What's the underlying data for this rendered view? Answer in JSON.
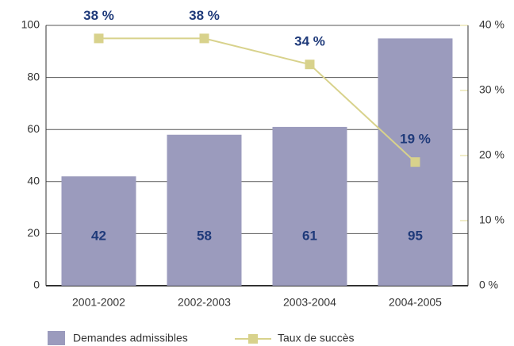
{
  "chart_data": {
    "type": "bar_line",
    "categories": [
      "2001-2002",
      "2002-2003",
      "2003-2004",
      "2004-2005"
    ],
    "series": [
      {
        "name": "Demandes admissibles",
        "color": "#9b9bbd",
        "values": [
          42,
          58,
          61,
          95
        ],
        "type": "bar"
      },
      {
        "name": "Taux de succès",
        "color": "#d8d28c",
        "values": [
          38,
          38,
          34,
          19
        ],
        "value_labels": [
          "38 %",
          "38 %",
          "34 %",
          "19 %"
        ],
        "type": "line",
        "axis": "y2"
      }
    ],
    "ylim": [
      0,
      100
    ],
    "yticks": [
      0,
      20,
      40,
      60,
      80,
      100
    ],
    "y2lim": [
      0,
      40
    ],
    "y2ticks": [
      {
        "value": 0,
        "label": "0 %"
      },
      {
        "value": 10,
        "label": "10 %"
      },
      {
        "value": 20,
        "label": "20 %"
      },
      {
        "value": 30,
        "label": "30 %"
      },
      {
        "value": 40,
        "label": "40 %"
      }
    ],
    "grid": true,
    "legend": "bottom"
  }
}
